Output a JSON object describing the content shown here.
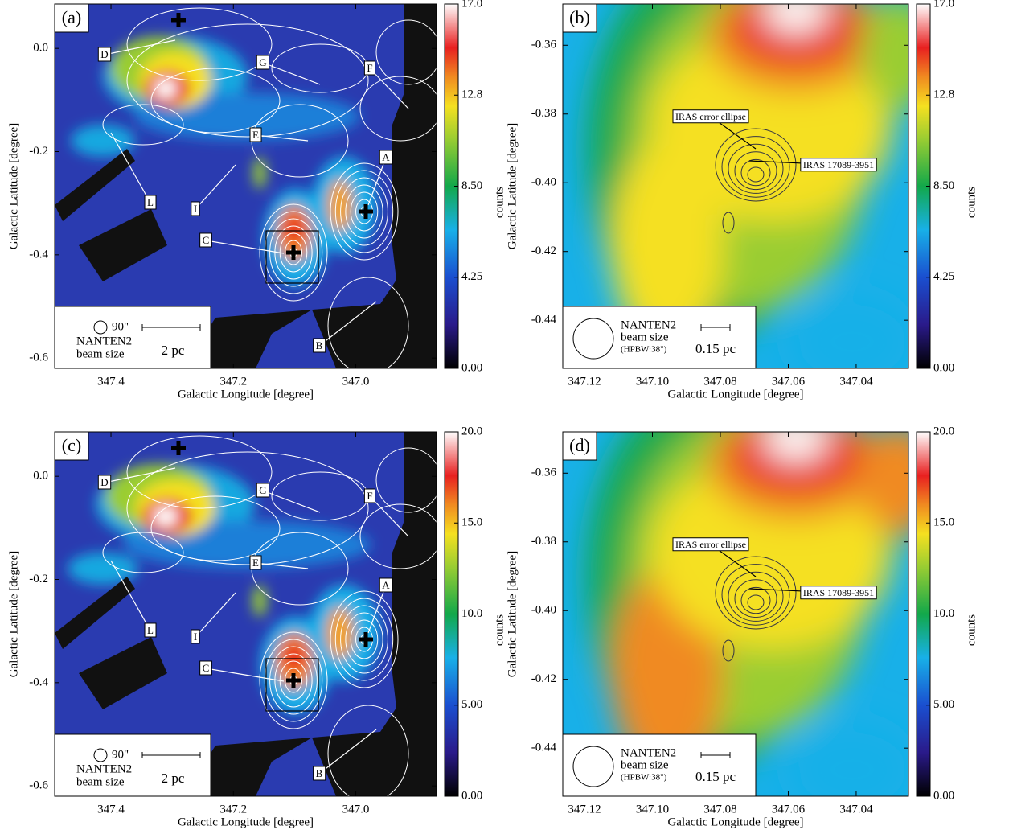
{
  "chart_data": [
    {
      "type": "heatmap",
      "panel_label": "(a)",
      "xlabel": "Galactic Longitude [degree]",
      "ylabel": "Galactic Latitude [degree]",
      "xlim": [
        347.492,
        346.868
      ],
      "ylim": [
        -0.62,
        0.086
      ],
      "xticks": [
        347.4,
        347.2,
        {
          "value": 347,
          "label": "347.0"
        }
      ],
      "yticks": [
        {
          "value": 0,
          "label": "0.0"
        },
        -0.2,
        -0.4,
        -0.6
      ],
      "colorbar_label": "counts",
      "clim": [
        0,
        17
      ],
      "cticks": [
        {
          "value": 0,
          "label": "0.00"
        },
        4.25,
        {
          "value": 8.5,
          "label": "8.50"
        },
        {
          "value": 12.75,
          "label": "12.8"
        },
        {
          "value": 17,
          "label": "17.0"
        }
      ],
      "annotations": [
        "D",
        "G",
        "F",
        "E",
        "A",
        "L",
        "I",
        "C",
        "B"
      ],
      "beam_label": "90\"",
      "beam_text": [
        "NANTEN2",
        "beam size"
      ],
      "scale_label": "2 pc"
    },
    {
      "type": "heatmap",
      "panel_label": "(b)",
      "xlabel": "Galactic Longitude [degree]",
      "ylabel": "Galactic Latitude [degree]",
      "xlim": [
        347.1264,
        347.0246
      ],
      "ylim": [
        -0.454,
        -0.348
      ],
      "xticks": [
        347.12,
        {
          "value": 347.1,
          "label": "347.10"
        },
        347.08,
        347.06,
        347.04
      ],
      "yticks": [
        -0.36,
        -0.38,
        {
          "value": -0.4,
          "label": "-0.40"
        },
        -0.42,
        -0.44
      ],
      "colorbar_label": "counts",
      "clim": [
        0,
        17
      ],
      "cticks": [
        {
          "value": 0,
          "label": "0.00"
        },
        4.25,
        {
          "value": 8.5,
          "label": "8.50"
        },
        {
          "value": 12.75,
          "label": "12.8"
        },
        {
          "value": 17,
          "label": "17.0"
        }
      ],
      "annotations": [
        "IRAS error ellipse",
        "IRAS 17089-3951"
      ],
      "beam_text": [
        "NANTEN2",
        "beam size",
        "(HPBW:38\")"
      ],
      "scale_label": "0.15 pc"
    },
    {
      "type": "heatmap",
      "panel_label": "(c)",
      "xlabel": "Galactic Longitude [degree]",
      "ylabel": "Galactic Latitude [degree]",
      "xlim": [
        347.492,
        346.868
      ],
      "ylim": [
        -0.62,
        0.086
      ],
      "xticks": [
        347.4,
        347.2,
        {
          "value": 347,
          "label": "347.0"
        }
      ],
      "yticks": [
        {
          "value": 0,
          "label": "0.0"
        },
        -0.2,
        -0.4,
        -0.6
      ],
      "colorbar_label": "counts",
      "clim": [
        0,
        20
      ],
      "cticks": [
        {
          "value": 0,
          "label": "0.00"
        },
        {
          "value": 5,
          "label": "5.00"
        },
        {
          "value": 10,
          "label": "10.0"
        },
        {
          "value": 15,
          "label": "15.0"
        },
        {
          "value": 20,
          "label": "20.0"
        }
      ],
      "annotations": [
        "D",
        "G",
        "F",
        "E",
        "A",
        "L",
        "I",
        "C",
        "B"
      ],
      "beam_label": "90\"",
      "beam_text": [
        "NANTEN2",
        "beam size"
      ],
      "scale_label": "2 pc"
    },
    {
      "type": "heatmap",
      "panel_label": "(d)",
      "xlabel": "Galactic Longitude [degree]",
      "ylabel": "Galactic Latitude [degree]",
      "xlim": [
        347.1264,
        347.0246
      ],
      "ylim": [
        -0.454,
        -0.348
      ],
      "xticks": [
        347.12,
        {
          "value": 347.1,
          "label": "347.10"
        },
        347.08,
        347.06,
        347.04
      ],
      "yticks": [
        -0.36,
        -0.38,
        {
          "value": -0.4,
          "label": "-0.40"
        },
        -0.42,
        -0.44
      ],
      "colorbar_label": "counts",
      "clim": [
        0,
        20
      ],
      "cticks": [
        {
          "value": 0,
          "label": "0.00"
        },
        {
          "value": 5,
          "label": "5.00"
        },
        {
          "value": 10,
          "label": "10.0"
        },
        {
          "value": 15,
          "label": "15.0"
        },
        {
          "value": 20,
          "label": "20.0"
        }
      ],
      "annotations": [
        "IRAS error ellipse",
        "IRAS 17089-3951"
      ],
      "beam_text": [
        "NANTEN2",
        "beam size",
        "(HPBW:38\")"
      ],
      "scale_label": "0.15 pc"
    }
  ]
}
